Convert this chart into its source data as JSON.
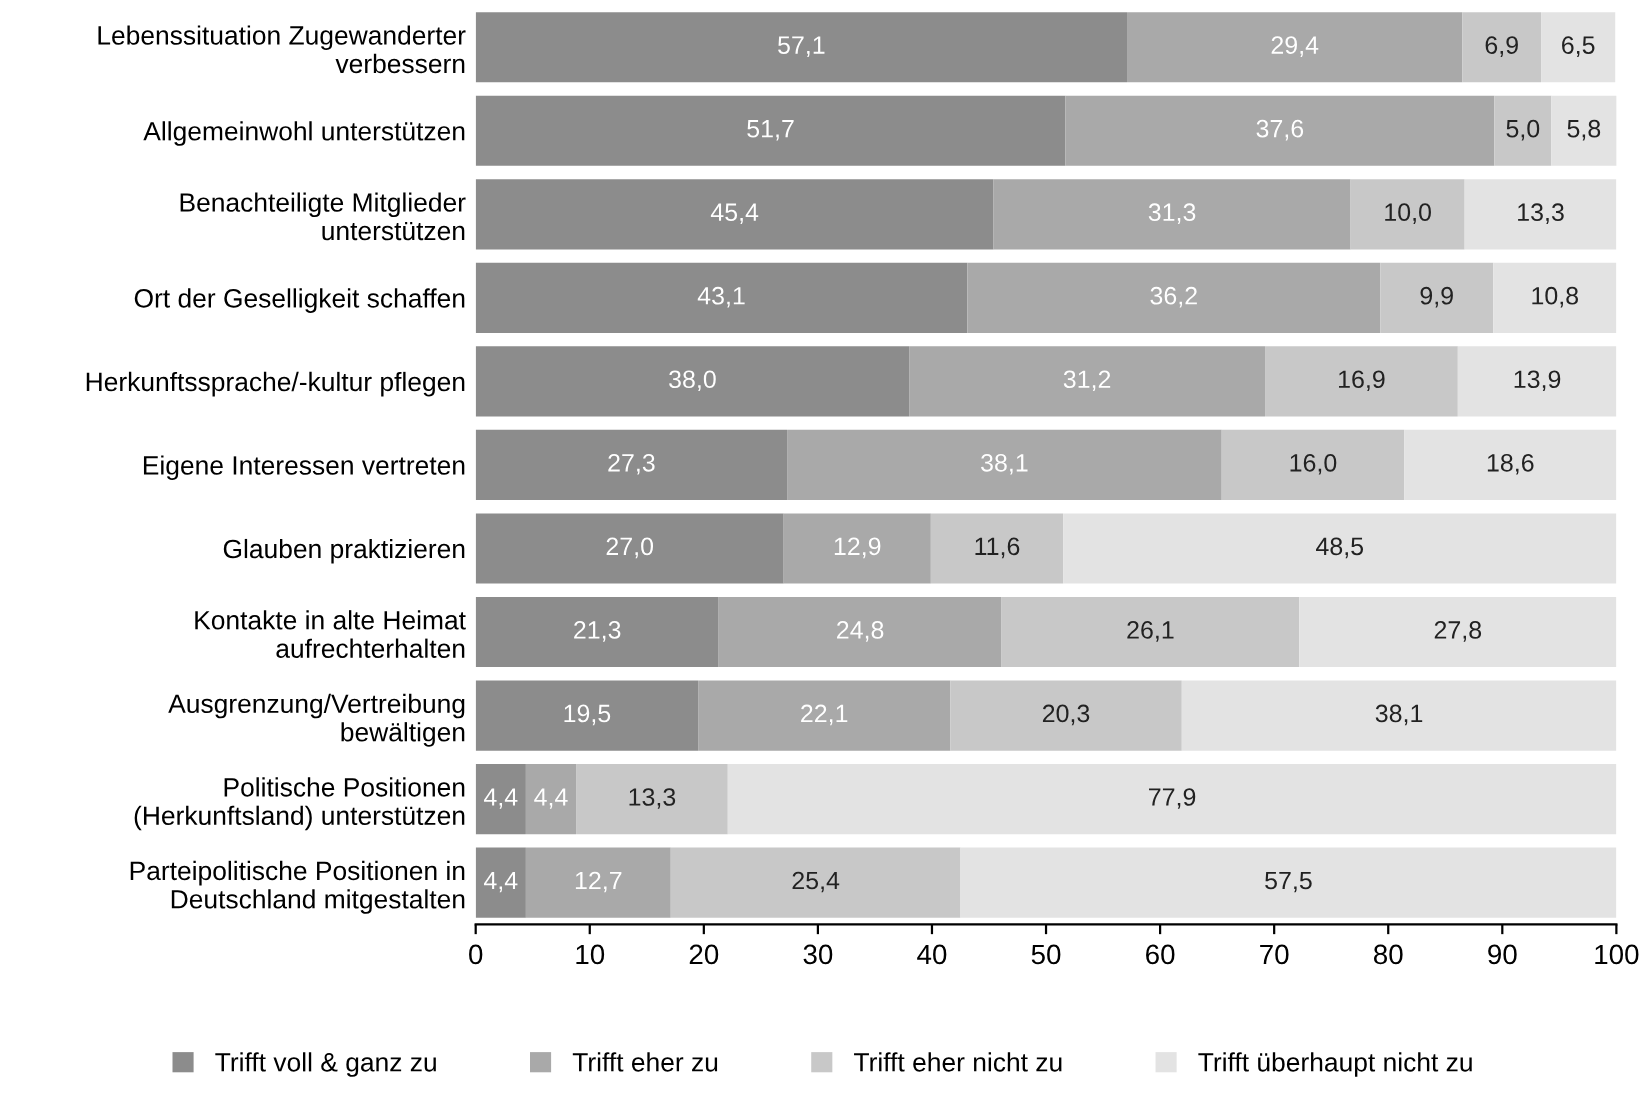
{
  "chart_data": {
    "type": "bar",
    "orientation": "horizontal",
    "stacked": true,
    "categories": [
      "Lebenssituation Zugewanderter\nverbessern",
      "Allgemeinwohl unterstützen",
      "Benachteiligte Mitglieder\nunterstützen",
      "Ort der Geselligkeit schaffen",
      "Herkunftssprache/-kultur pflegen",
      "Eigene Interessen vertreten",
      "Glauben praktizieren",
      "Kontakte in alte Heimat\naufrechterhalten",
      "Ausgrenzung/Vertreibung\nbewältigen",
      "Politische Positionen\n(Herkunftsland) unterstützen",
      "Parteipolitische Positionen in\nDeutschland mitgestalten"
    ],
    "series": [
      {
        "name": "Trifft voll & ganz zu",
        "color": "#8c8c8c",
        "values": [
          57.1,
          51.7,
          45.4,
          43.1,
          38.0,
          27.3,
          27.0,
          21.3,
          19.5,
          4.4,
          4.4
        ],
        "value_labels": [
          "57,1",
          "51,7",
          "45,4",
          "43,1",
          "38,0",
          "27,3",
          "27,0",
          "21,3",
          "19,5",
          "4,4",
          "4,4"
        ]
      },
      {
        "name": "Trifft eher zu",
        "color": "#a9a9a9",
        "values": [
          29.4,
          37.6,
          31.3,
          36.2,
          31.2,
          38.1,
          12.9,
          24.8,
          22.1,
          4.4,
          12.7
        ],
        "value_labels": [
          "29,4",
          "37,6",
          "31,3",
          "36,2",
          "31,2",
          "38,1",
          "12,9",
          "24,8",
          "22,1",
          "4,4",
          "12,7"
        ]
      },
      {
        "name": "Trifft eher nicht zu",
        "color": "#c8c8c8",
        "values": [
          6.9,
          5.0,
          10.0,
          9.9,
          16.9,
          16.0,
          11.6,
          26.1,
          20.3,
          13.3,
          25.4
        ],
        "value_labels": [
          "6,9",
          "5,0",
          "10,0",
          "9,9",
          "16,9",
          "16,0",
          "11,6",
          "26,1",
          "20,3",
          "13,3",
          "25,4"
        ]
      },
      {
        "name": "Trifft überhaupt nicht zu",
        "color": "#e3e3e3",
        "values": [
          6.5,
          5.8,
          13.3,
          10.8,
          13.9,
          18.6,
          48.5,
          27.8,
          38.1,
          77.9,
          57.5
        ],
        "value_labels": [
          "6,5",
          "5,8",
          "13,3",
          "10,8",
          "13,9",
          "18,6",
          "48,5",
          "27,8",
          "38,1",
          "77,9",
          "57,5"
        ]
      }
    ],
    "xlim": [
      0,
      100
    ],
    "xticks": [
      0,
      10,
      20,
      30,
      40,
      50,
      60,
      70,
      80,
      90,
      100
    ],
    "grid": false,
    "legend": "bottom"
  }
}
